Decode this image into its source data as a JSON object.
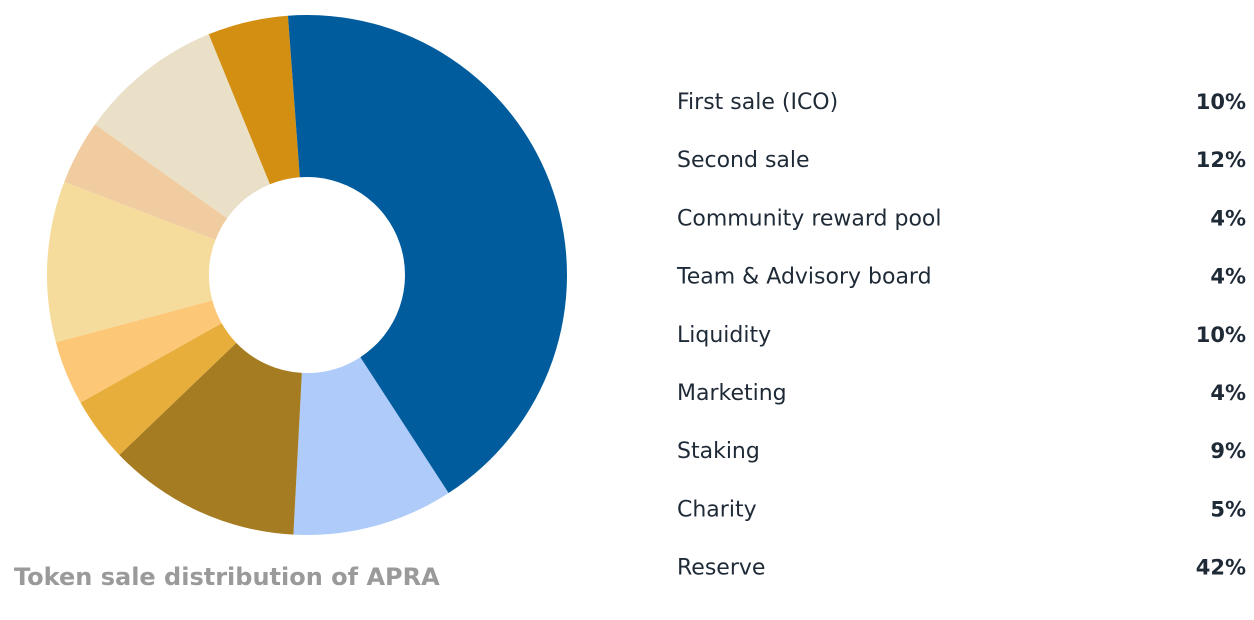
{
  "chart_data": {
    "type": "donut",
    "caption": "Token sale distribution of APRA",
    "categories": [
      "First sale (ICO)",
      "Second sale",
      "Community reward pool",
      "Team & Advisory board",
      "Liquidity",
      "Marketing",
      "Staking",
      "Charity",
      "Reserve"
    ],
    "values": [
      10,
      12,
      4,
      4,
      10,
      4,
      9,
      5,
      42
    ],
    "value_labels": [
      "10%",
      "12%",
      "4%",
      "4%",
      "10%",
      "4%",
      "9%",
      "5%",
      "42%"
    ],
    "colors": [
      "#aecbfa",
      "#a57c21",
      "#e8ae3c",
      "#fcc878",
      "#f5dc9c",
      "#f0cca0",
      "#eae0c8",
      "#d38f12",
      "#005c9d"
    ]
  }
}
